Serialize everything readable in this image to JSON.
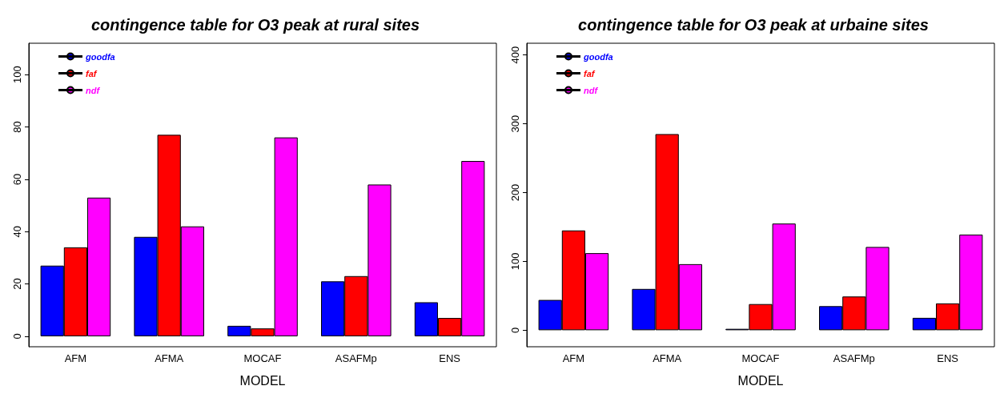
{
  "chart_data": [
    {
      "type": "bar",
      "title": "contingence table for O3 peak at rural sites",
      "xlabel": "MODEL",
      "categories": [
        "AFM",
        "AFMA",
        "MOCAF",
        "ASAFMp",
        "ENS"
      ],
      "series": [
        {
          "name": "goodfa",
          "color": "#0000ff",
          "values": [
            27,
            38,
            4,
            21,
            13
          ]
        },
        {
          "name": "faf",
          "color": "#ff0000",
          "values": [
            34,
            77,
            3,
            23,
            7
          ]
        },
        {
          "name": "ndf",
          "color": "#ff00ff",
          "values": [
            53,
            42,
            76,
            58,
            67
          ]
        }
      ],
      "ylim": [
        -4,
        112
      ],
      "yticks": [
        0,
        20,
        40,
        60,
        80,
        100
      ],
      "grid": false,
      "legend": "top left"
    },
    {
      "type": "bar",
      "title": "contingence table for O3 peak at urbaine sites",
      "xlabel": "MODEL",
      "categories": [
        "AFM",
        "AFMA",
        "MOCAF",
        "ASAFMp",
        "ENS"
      ],
      "series": [
        {
          "name": "goodfa",
          "color": "#0000ff",
          "values": [
            44,
            60,
            2,
            35,
            18
          ]
        },
        {
          "name": "faf",
          "color": "#ff0000",
          "values": [
            145,
            285,
            38,
            49,
            39
          ]
        },
        {
          "name": "ndf",
          "color": "#ff00ff",
          "values": [
            112,
            96,
            155,
            121,
            139
          ]
        }
      ],
      "ylim": [
        -24,
        417
      ],
      "yticks": [
        0,
        100,
        200,
        300,
        400
      ],
      "grid": false,
      "legend": "top left"
    }
  ]
}
